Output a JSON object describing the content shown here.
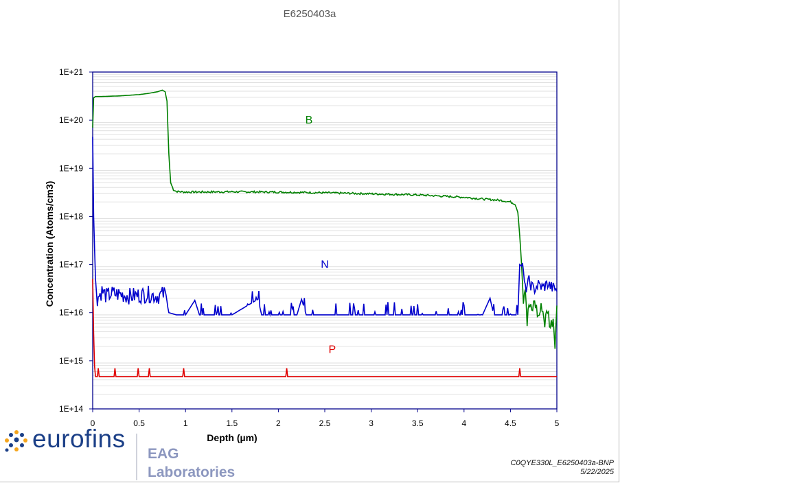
{
  "page": {
    "title": "E6250403a",
    "footer_id": "C0QYE330L_E6250403a-BNP",
    "footer_date": "5/22/2025"
  },
  "logo": {
    "company": "eurofins",
    "division_line1": "EAG",
    "division_line2": "Laboratories"
  },
  "chart_data": {
    "type": "line",
    "title": "",
    "xlabel": "Depth (µm)",
    "ylabel": "Concentration (Atoms/cm3)",
    "xlim": [
      0,
      5
    ],
    "ylim": [
      100000000000000.0,
      1e+21
    ],
    "y_scale": "log",
    "x_ticks": [
      "0",
      "0.5",
      "1",
      "1.5",
      "2",
      "2.5",
      "3",
      "3.5",
      "4",
      "4.5",
      "5"
    ],
    "y_ticks": [
      "1E+14",
      "1E+15",
      "1E+16",
      "1E+17",
      "1E+18",
      "1E+19",
      "1E+20",
      "1E+21"
    ],
    "grid": "horizontal minor",
    "series": [
      {
        "name": "B",
        "color": "#008000",
        "points": [
          [
            0,
            7e+19
          ],
          [
            0.01,
            2.9e+20
          ],
          [
            0.03,
            3.1e+20
          ],
          [
            0.1,
            3.1e+20
          ],
          [
            0.2,
            3.15e+20
          ],
          [
            0.3,
            3.2e+20
          ],
          [
            0.4,
            3.3e+20
          ],
          [
            0.5,
            3.4e+20
          ],
          [
            0.6,
            3.6e+20
          ],
          [
            0.7,
            3.9e+20
          ],
          [
            0.75,
            4.2e+20
          ],
          [
            0.78,
            3.9e+20
          ],
          [
            0.8,
            2.5e+20
          ],
          [
            0.82,
            2e+19
          ],
          [
            0.84,
            5e+18
          ],
          [
            0.87,
            3.6e+18
          ],
          [
            0.9,
            3.3e+18
          ],
          [
            1.0,
            3.2e+18
          ],
          [
            1.5,
            3.25e+18
          ],
          [
            2.0,
            3.2e+18
          ],
          [
            2.5,
            3.1e+18
          ],
          [
            3.0,
            2.95e+18
          ],
          [
            3.5,
            2.8e+18
          ],
          [
            4.0,
            2.5e+18
          ],
          [
            4.2,
            2.3e+18
          ],
          [
            4.4,
            2.15e+18
          ],
          [
            4.5,
            2e+18
          ],
          [
            4.55,
            1.8e+18
          ],
          [
            4.58,
            1.2e+18
          ],
          [
            4.6,
            4e+17
          ],
          [
            4.62,
            1e+17
          ],
          [
            4.64,
            2e+16
          ],
          [
            4.66,
            4e+16
          ],
          [
            4.68,
            6000000000000000.0
          ],
          [
            4.7,
            1.5e+16
          ],
          [
            4.73,
            1e+16
          ],
          [
            4.76,
            1.8e+16
          ],
          [
            4.8,
            8000000000000000.0
          ],
          [
            4.84,
            1.4e+16
          ],
          [
            4.87,
            6000000000000000.0
          ],
          [
            4.9,
            1.2e+16
          ],
          [
            4.93,
            5000000000000000.0
          ],
          [
            4.96,
            8000000000000000.0
          ],
          [
            4.98,
            2500000000000000.0
          ],
          [
            5.0,
            1.2e+16
          ]
        ]
      },
      {
        "name": "N",
        "color": "#0000cc",
        "points": [
          [
            0,
            4.5e+19
          ],
          [
            0.01,
            1e+18
          ],
          [
            0.03,
            5e+16
          ],
          [
            0.05,
            2e+16
          ],
          [
            0.1,
            2.8e+16
          ],
          [
            0.15,
            2.2e+16
          ],
          [
            0.2,
            2.5e+16
          ],
          [
            0.3,
            2.4e+16
          ],
          [
            0.4,
            2.2e+16
          ],
          [
            0.5,
            2.3e+16
          ],
          [
            0.6,
            2.4e+16
          ],
          [
            0.7,
            2.2e+16
          ],
          [
            0.78,
            2.5e+16
          ],
          [
            0.82,
            1e+16
          ],
          [
            0.9,
            9000000000000000.0
          ],
          [
            1.0,
            9000000000000000.0
          ],
          [
            1.1,
            1.8e+16
          ],
          [
            1.15,
            9000000000000000.0
          ],
          [
            1.5,
            9000000000000000.0
          ],
          [
            1.78,
            1.9e+16
          ],
          [
            1.82,
            9000000000000000.0
          ],
          [
            2.2,
            9000000000000000.0
          ],
          [
            2.25,
            1.9e+16
          ],
          [
            2.3,
            9000000000000000.0
          ],
          [
            3.0,
            9000000000000000.0
          ],
          [
            3.5,
            9000000000000000.0
          ],
          [
            4.2,
            9000000000000000.0
          ],
          [
            4.28,
            2e+16
          ],
          [
            4.32,
            9000000000000000.0
          ],
          [
            4.58,
            9000000000000000.0
          ],
          [
            4.6,
            1e+17
          ],
          [
            4.63,
            9e+16
          ],
          [
            4.66,
            3e+16
          ],
          [
            4.7,
            4.5e+16
          ],
          [
            4.75,
            3e+16
          ],
          [
            4.8,
            3.8e+16
          ],
          [
            4.85,
            3.3e+16
          ],
          [
            4.9,
            4e+16
          ],
          [
            4.95,
            3.3e+16
          ],
          [
            5.0,
            3e+16
          ]
        ]
      },
      {
        "name": "P",
        "color": "#e00000",
        "points": [
          [
            0,
            5e+16
          ],
          [
            0.015,
            1000000000000000.0
          ],
          [
            0.03,
            470000000000000.0
          ],
          [
            5.0,
            470000000000000.0
          ]
        ],
        "spikes": [
          0.06,
          0.24,
          0.49,
          0.61,
          0.98,
          2.09,
          4.6
        ],
        "spike_value": 700000000000000.0
      }
    ],
    "annotations": [
      {
        "text": "B",
        "x": 2.33,
        "y": 1e+20,
        "color": "#008000"
      },
      {
        "text": "N",
        "x": 2.5,
        "y": 1e+17,
        "color": "#0000cc"
      },
      {
        "text": "P",
        "x": 2.58,
        "y": 1700000000000000.0,
        "color": "#e00000"
      }
    ]
  }
}
